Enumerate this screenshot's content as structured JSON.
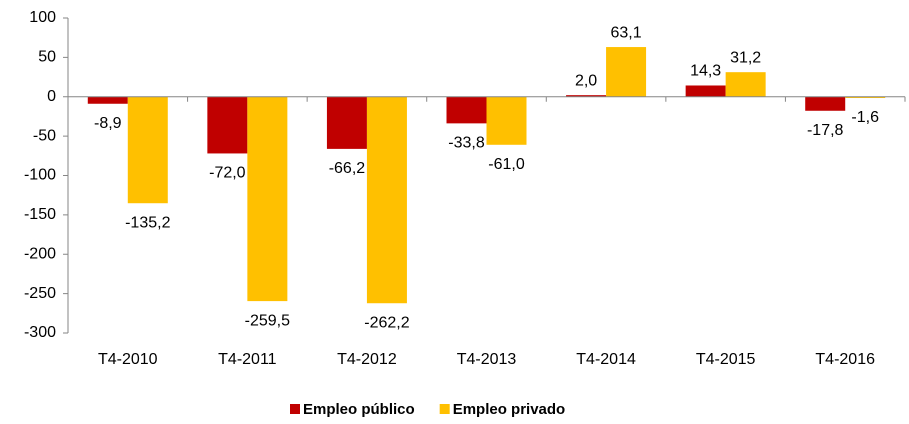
{
  "chart_data": {
    "type": "bar",
    "categories": [
      "T4-2010",
      "T4-2011",
      "T4-2012",
      "T4-2013",
      "T4-2014",
      "T4-2015",
      "T4-2016"
    ],
    "series": [
      {
        "name": "Empleo público",
        "color": "#c00000",
        "values": [
          -8.9,
          -72.0,
          -66.2,
          -33.8,
          2.0,
          14.3,
          -17.8
        ],
        "value_labels": [
          "-8,9",
          "-72,0",
          "-66,2",
          "-33,8",
          "2,0",
          "14,3",
          "-17,8"
        ]
      },
      {
        "name": "Empleo privado",
        "color": "#ffc000",
        "values": [
          -135.2,
          -259.5,
          -262.2,
          -61.0,
          63.1,
          31.2,
          -1.6
        ],
        "value_labels": [
          "-135,2",
          "-259,5",
          "-262,2",
          "-61,0",
          "63,1",
          "31,2",
          "-1,6"
        ]
      }
    ],
    "ylim": [
      -300,
      100
    ],
    "yticks": [
      -300,
      -250,
      -200,
      -150,
      -100,
      -50,
      0,
      50,
      100
    ],
    "legend": "bottom"
  }
}
